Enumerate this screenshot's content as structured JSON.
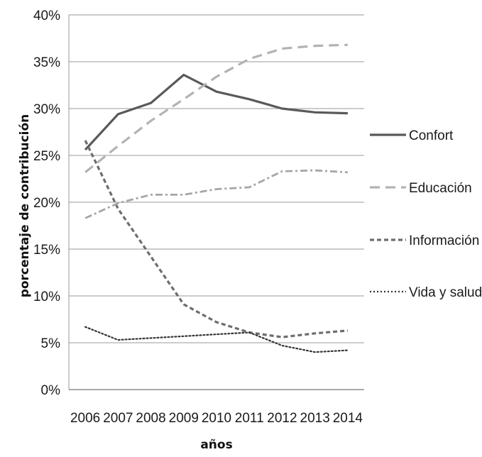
{
  "chart_data": {
    "type": "line",
    "title": "",
    "xlabel": "años",
    "ylabel": "porcentaje de contribución",
    "x": [
      "2006",
      "2007",
      "2008",
      "2009",
      "2010",
      "2011",
      "2012",
      "2013",
      "2014"
    ],
    "y_ticks": [
      "0%",
      "5%",
      "10%",
      "15%",
      "20%",
      "25%",
      "30%",
      "35%",
      "40%"
    ],
    "ylim": [
      0,
      40
    ],
    "grid": "horizontal",
    "legend_position": "right",
    "series": [
      {
        "name": "Confort",
        "values": [
          25.6,
          29.4,
          30.6,
          33.6,
          31.8,
          31.0,
          30.0,
          29.6,
          29.5
        ],
        "color": "#595959",
        "dash": "solid"
      },
      {
        "name": "Educación",
        "values": [
          23.2,
          26.0,
          28.7,
          31.0,
          33.4,
          35.3,
          36.4,
          36.7,
          36.8
        ],
        "color": "#b3b3b3",
        "dash": "long-dash"
      },
      {
        "name": "Información",
        "values": [
          26.6,
          19.3,
          14.2,
          9.1,
          7.2,
          6.1,
          5.6,
          6.0,
          6.3
        ],
        "color": "#6d6d6d",
        "dash": "short-dash"
      },
      {
        "name": "",
        "values": [
          18.3,
          19.9,
          20.8,
          20.8,
          21.4,
          21.6,
          23.3,
          23.4,
          23.2
        ],
        "color": "#a6a6a6",
        "dash": "dash-dot"
      },
      {
        "name": "Vida y salud",
        "values": [
          6.7,
          5.3,
          5.5,
          5.7,
          5.9,
          6.1,
          4.7,
          4.0,
          4.2
        ],
        "color": "#333333",
        "dash": "dotted"
      }
    ]
  }
}
